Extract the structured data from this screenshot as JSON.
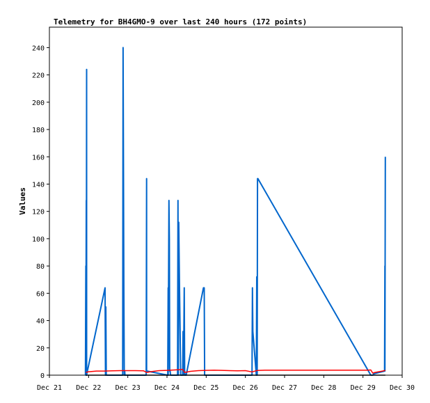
{
  "chart_data": {
    "type": "line",
    "title": "Telemetry for BH4GMO-9 over last 240 hours (172 points)",
    "xlabel": "",
    "ylabel": "Values",
    "xlim": [
      0,
      9
    ],
    "ylim": [
      0,
      255
    ],
    "x_ticks": [
      {
        "label": "Dec 21",
        "value": 0
      },
      {
        "label": "Dec 22",
        "value": 1
      },
      {
        "label": "Dec 23",
        "value": 2
      },
      {
        "label": "Dec 24",
        "value": 3
      },
      {
        "label": "Dec 25",
        "value": 4
      },
      {
        "label": "Dec 26",
        "value": 5
      },
      {
        "label": "Dec 27",
        "value": 6
      },
      {
        "label": "Dec 28",
        "value": 7
      },
      {
        "label": "Dec 29",
        "value": 8
      },
      {
        "label": "Dec 30",
        "value": 9
      }
    ],
    "y_ticks": [
      0,
      20,
      40,
      60,
      80,
      100,
      120,
      140,
      160,
      180,
      200,
      220,
      240
    ],
    "grid": false,
    "series": [
      {
        "color": "#0066cc",
        "x": [
          0.92,
          0.93,
          0.93,
          0.94,
          0.94,
          0.95,
          0.95,
          0.96,
          0.97,
          1.42,
          1.43,
          1.44,
          1.45,
          1.87,
          1.88,
          1.9,
          1.91,
          1.91,
          1.92,
          1.92,
          1.93,
          2.47,
          2.48,
          2.48,
          2.49,
          3.02,
          3.03,
          3.03,
          3.05,
          3.06,
          3.07,
          3.08,
          3.09,
          3.15,
          3.16,
          3.27,
          3.28,
          3.29,
          3.3,
          3.32,
          3.35,
          3.4,
          3.41,
          3.42,
          3.44,
          3.45,
          3.46,
          3.47,
          3.49,
          3.93,
          3.95,
          3.96,
          5.17,
          5.18,
          5.19,
          5.28,
          5.29,
          5.3,
          5.31,
          5.32,
          5.34,
          8.2,
          8.25,
          8.28,
          8.55,
          8.56,
          8.56,
          8.57
        ],
        "y": [
          0,
          80,
          0,
          128,
          0,
          224,
          0,
          2,
          3,
          64,
          0,
          50,
          0,
          0,
          240,
          64,
          0,
          0,
          3,
          3,
          0,
          0,
          144,
          3,
          3,
          0,
          64,
          0,
          128,
          100,
          3,
          3,
          0,
          0,
          0,
          0,
          128,
          0,
          112,
          64,
          0,
          0,
          32,
          0,
          64,
          0,
          1,
          0,
          0,
          64,
          64,
          0,
          0,
          64,
          32,
          0,
          72,
          0,
          144,
          144,
          143,
          0,
          0,
          1,
          3,
          80,
          3,
          160
        ]
      },
      {
        "color": "#ff0000",
        "x": [
          0.93,
          1.0,
          1.2,
          1.4,
          1.6,
          1.8,
          2.0,
          2.2,
          2.4,
          2.48,
          2.6,
          2.8,
          3.0,
          3.2,
          3.3,
          3.4,
          3.45,
          3.6,
          3.8,
          4.0,
          4.2,
          4.4,
          4.6,
          4.8,
          5.0,
          5.17,
          5.3,
          5.5,
          5.8,
          6.2,
          6.6,
          7.0,
          7.4,
          7.8,
          8.1,
          8.2,
          8.25,
          8.3,
          8.5,
          8.57
        ],
        "y": [
          2,
          2.5,
          3,
          3,
          3.2,
          3.3,
          3.3,
          3.3,
          3.2,
          2,
          2.6,
          3.3,
          3.5,
          3.8,
          4,
          4.3,
          2,
          2.8,
          3.3,
          3.5,
          3.6,
          3.5,
          3.3,
          3.2,
          3.3,
          2.4,
          3.4,
          3.6,
          3.6,
          3.6,
          3.6,
          3.6,
          3.6,
          3.6,
          3.6,
          3.8,
          1.5,
          2,
          3,
          3.5
        ]
      },
      {
        "color": "#000000",
        "x": [
          0.92,
          8.57
        ],
        "y": [
          0,
          0
        ]
      }
    ]
  }
}
